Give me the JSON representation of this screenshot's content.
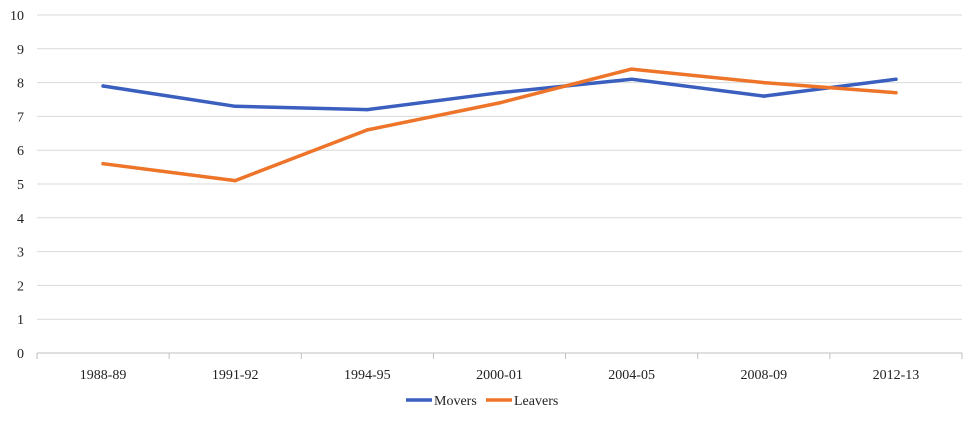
{
  "chart_data": {
    "type": "line",
    "categories": [
      "1988-89",
      "1991-92",
      "1994-95",
      "2000-01",
      "2004-05",
      "2008-09",
      "2012-13"
    ],
    "series": [
      {
        "name": "Movers",
        "color": "#3a5fbe",
        "values": [
          7.9,
          7.3,
          7.2,
          7.7,
          8.1,
          7.6,
          8.1
        ]
      },
      {
        "name": "Leavers",
        "color": "#ed7428",
        "values": [
          5.6,
          5.1,
          6.6,
          7.4,
          8.4,
          8.0,
          7.7
        ]
      }
    ],
    "ylim": [
      0,
      10
    ],
    "yticks": [
      0,
      1,
      2,
      3,
      4,
      5,
      6,
      7,
      8,
      9,
      10
    ],
    "grid": "horizontal",
    "legend_position": "bottom-center",
    "gridline_color": "#d9d9d9",
    "axis_color": "#bfbfbf"
  }
}
